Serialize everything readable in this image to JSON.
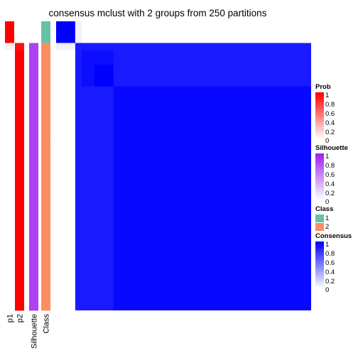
{
  "chart_data": {
    "type": "heatmap",
    "title": "consensus mclust with 2 groups from 250 partitions",
    "n_samples": 40,
    "group_sizes": [
      3,
      37
    ],
    "annotations": [
      {
        "name": "p1",
        "values": [
          1,
          1,
          1,
          0.06,
          0,
          0,
          0,
          0,
          0,
          0,
          0,
          0,
          0,
          0,
          0,
          0,
          0,
          0,
          0,
          0,
          0,
          0,
          0,
          0,
          0,
          0,
          0,
          0,
          0,
          0,
          0,
          0,
          0,
          0,
          0,
          0,
          0,
          0,
          0,
          0
        ]
      },
      {
        "name": "p2",
        "values": [
          0,
          0,
          0,
          0.94,
          1,
          1,
          1,
          1,
          1,
          1,
          1,
          1,
          1,
          1,
          1,
          1,
          1,
          1,
          1,
          1,
          1,
          1,
          1,
          1,
          1,
          1,
          1,
          1,
          1,
          1,
          1,
          1,
          1,
          1,
          1,
          1,
          1,
          1,
          1,
          1
        ]
      },
      {
        "name": "Silhouette",
        "values": [
          0,
          0,
          0,
          0.85,
          0.85,
          0.85,
          0.85,
          0.85,
          0.85,
          0.85,
          0.85,
          0.85,
          0.85,
          0.85,
          0.85,
          0.85,
          0.85,
          0.85,
          0.85,
          0.85,
          0.85,
          0.85,
          0.85,
          0.85,
          0.85,
          0.85,
          0.85,
          0.85,
          0.85,
          0.85,
          0.85,
          0.85,
          0.85,
          0.85,
          0.85,
          0.85,
          0.85,
          0.85,
          0.85,
          0.85
        ]
      },
      {
        "name": "Class",
        "values": [
          1,
          1,
          1,
          2,
          2,
          2,
          2,
          2,
          2,
          2,
          2,
          2,
          2,
          2,
          2,
          2,
          2,
          2,
          2,
          2,
          2,
          2,
          2,
          2,
          2,
          2,
          2,
          2,
          2,
          2,
          2,
          2,
          2,
          2,
          2,
          2,
          2,
          2,
          2,
          2
        ]
      }
    ],
    "consensus_blocks": [
      {
        "rows": [
          0,
          3
        ],
        "cols": [
          0,
          3
        ],
        "value": 1.0
      },
      {
        "rows": [
          0,
          3
        ],
        "cols": [
          3,
          4
        ],
        "value": 0.06
      },
      {
        "rows": [
          3,
          4
        ],
        "cols": [
          0,
          3
        ],
        "value": 0.06
      },
      {
        "rows": [
          3,
          40
        ],
        "cols": [
          3,
          40
        ],
        "value": 0.9
      },
      {
        "rows": [
          4,
          9
        ],
        "cols": [
          4,
          9
        ],
        "value": 0.95
      },
      {
        "rows": [
          6,
          9
        ],
        "cols": [
          6,
          9
        ],
        "value": 1.0
      },
      {
        "rows": [
          9,
          40
        ],
        "cols": [
          9,
          40
        ],
        "value": 0.97
      }
    ],
    "legends": [
      {
        "title": "Prob",
        "ticks": [
          "1",
          "0.8",
          "0.6",
          "0.4",
          "0.2",
          "0"
        ],
        "color": "#ff0000"
      },
      {
        "title": "Silhouette",
        "ticks": [
          "1",
          "0.8",
          "0.6",
          "0.4",
          "0.2",
          "0"
        ],
        "color": "#a020f0"
      },
      {
        "title": "Class",
        "ticks": [
          "1",
          "2"
        ],
        "colors": [
          "#66c2a5",
          "#fc8d62"
        ]
      },
      {
        "title": "Consensus",
        "ticks": [
          "1",
          "0.8",
          "0.6",
          "0.4",
          "0.2",
          "0"
        ],
        "color": "#0000ff"
      }
    ],
    "colors": {
      "prob": "#ff0000",
      "silhouette": "#a020f0",
      "consensus": "#0000ff",
      "class_1": "#66c2a5",
      "class_2": "#fc8d62"
    }
  }
}
